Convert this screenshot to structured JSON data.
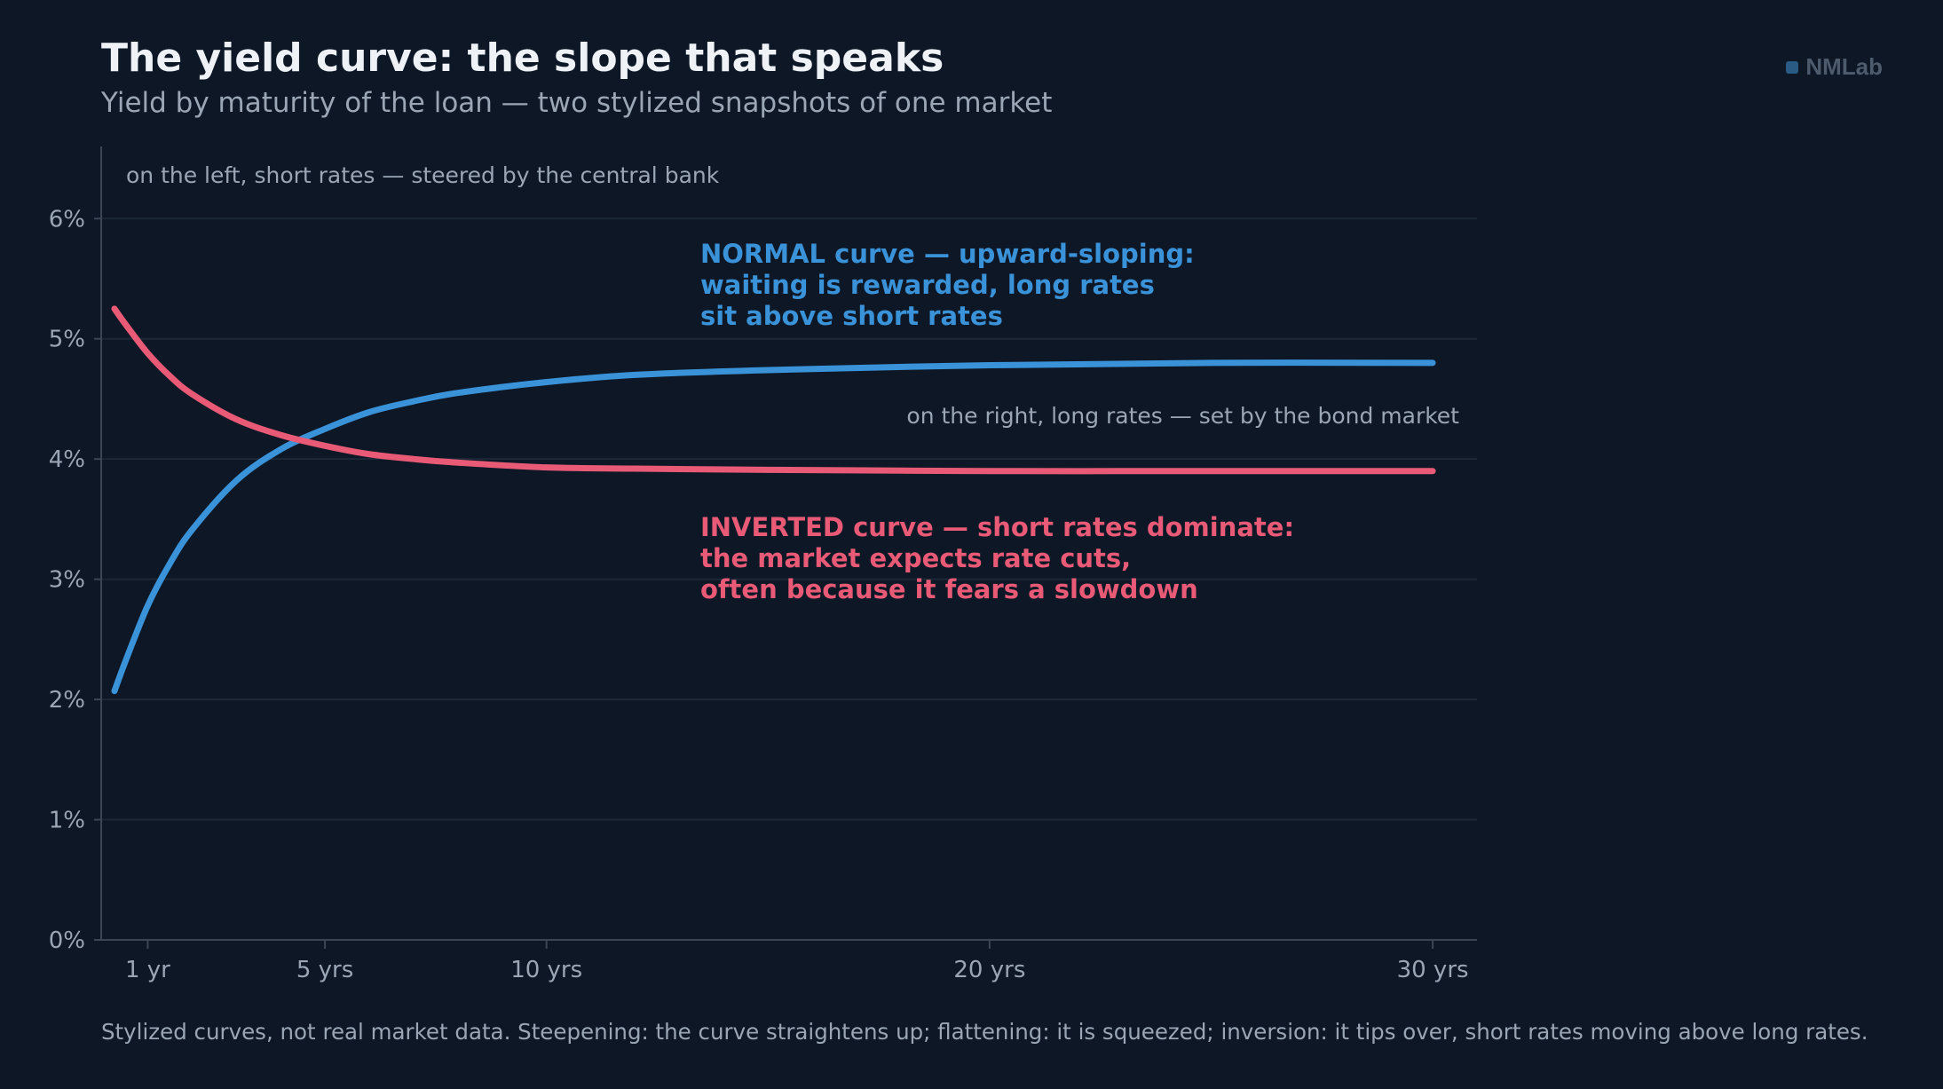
{
  "header": {
    "title": "The yield curve: the slope that speaks",
    "subtitle": "Yield by maturity of the loan — two stylized snapshots of one market"
  },
  "brand": {
    "name": "NMLab"
  },
  "footnote": "Stylized curves, not real market data. Steepening: the curve straightens up; flattening: it is squeezed; inversion: it tips over, short rates moving above long rates.",
  "colors": {
    "background": "#0d1726",
    "normal": "#3a92d8",
    "inverted": "#e85a76",
    "grid": "#1c2838",
    "axis": "#3a4656"
  },
  "chart_data": {
    "type": "line",
    "title": "The yield curve: the slope that speaks",
    "subtitle": "Yield by maturity of the loan — two stylized snapshots of one market",
    "xlabel": "",
    "ylabel": "",
    "xlim": [
      -0.05,
      31
    ],
    "ylim": [
      0,
      6.6
    ],
    "grid": true,
    "x_ticks": [
      {
        "value": 1,
        "label": "1 yr"
      },
      {
        "value": 5,
        "label": "5 yrs"
      },
      {
        "value": 10,
        "label": "10 yrs"
      },
      {
        "value": 20,
        "label": "20 yrs"
      },
      {
        "value": 30,
        "label": "30 yrs"
      }
    ],
    "y_ticks": [
      {
        "value": 0,
        "label": "0%"
      },
      {
        "value": 1,
        "label": "1%"
      },
      {
        "value": 2,
        "label": "2%"
      },
      {
        "value": 3,
        "label": "3%"
      },
      {
        "value": 4,
        "label": "4%"
      },
      {
        "value": 5,
        "label": "5%"
      },
      {
        "value": 6,
        "label": "6%"
      }
    ],
    "x": [
      0.25,
      0.5,
      1,
      1.5,
      2,
      3,
      4,
      5,
      6,
      7,
      8,
      10,
      12,
      15,
      20,
      25,
      30
    ],
    "series": [
      {
        "key": "normal",
        "values": [
          2.07,
          2.32,
          2.78,
          3.13,
          3.41,
          3.82,
          4.08,
          4.25,
          4.39,
          4.48,
          4.55,
          4.64,
          4.7,
          4.74,
          4.78,
          4.8,
          4.8
        ]
      },
      {
        "key": "inverted",
        "values": [
          5.25,
          5.12,
          4.88,
          4.69,
          4.54,
          4.33,
          4.2,
          4.11,
          4.04,
          4.0,
          3.97,
          3.93,
          3.92,
          3.91,
          3.9,
          3.9,
          3.9
        ]
      }
    ],
    "annotations": {
      "short_rates_note": "on the left, short rates — steered by the central bank",
      "long_rates_note": "on the right, long rates — set by the bond market",
      "normal_label": [
        "NORMAL curve — upward-sloping:",
        "waiting is rewarded, long rates",
        "sit above short rates"
      ],
      "inverted_label": [
        "INVERTED curve — short rates dominate:",
        "the market expects rate cuts,",
        "often because it fears a slowdown"
      ]
    }
  }
}
